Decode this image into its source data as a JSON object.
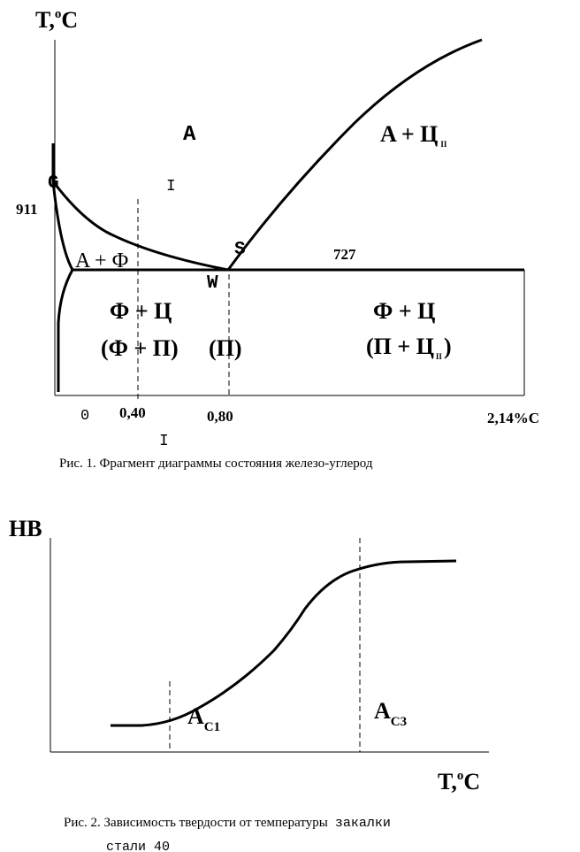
{
  "figure1": {
    "y_axis_label": "T,",
    "y_axis_sup": "o",
    "y_axis_unit": "C",
    "point_G": "G",
    "point_S": "S",
    "point_W": "W",
    "cursor_mark": "I",
    "temp_911": "911",
    "temp_727": "727",
    "region_A": "A",
    "region_A_C": "A + Ц",
    "region_A_C_sub": "II",
    "region_A_F": "A + Ф",
    "region_F_C_left": "Ф + Ц",
    "region_F_P": "(Ф + П)",
    "region_P": "(П)",
    "region_F_C_right": "Ф + Ц",
    "region_P_C": "(П + Ц",
    "region_P_C_sub": "II",
    "region_P_C_close": ")",
    "tick_0": "0",
    "tick_040": "0,40",
    "tick_080": "0,80",
    "tick_214": "2,14%С",
    "cursor_mark_2": "I",
    "caption": "Рис. 1. Фрагмент диаграммы состояния железо-углерод"
  },
  "figure2": {
    "y_axis_label": "HB",
    "x_axis_label": "T,",
    "x_axis_sup": "o",
    "x_axis_unit": "C",
    "ac1_main": "A",
    "ac1_sub": "C1",
    "ac3_main": "A",
    "ac3_sub": "C3",
    "caption_serif": "Рис. 2. Зависимость твердости от температуры",
    "caption_mono1": "закалки",
    "caption_mono2": "стали 40"
  }
}
